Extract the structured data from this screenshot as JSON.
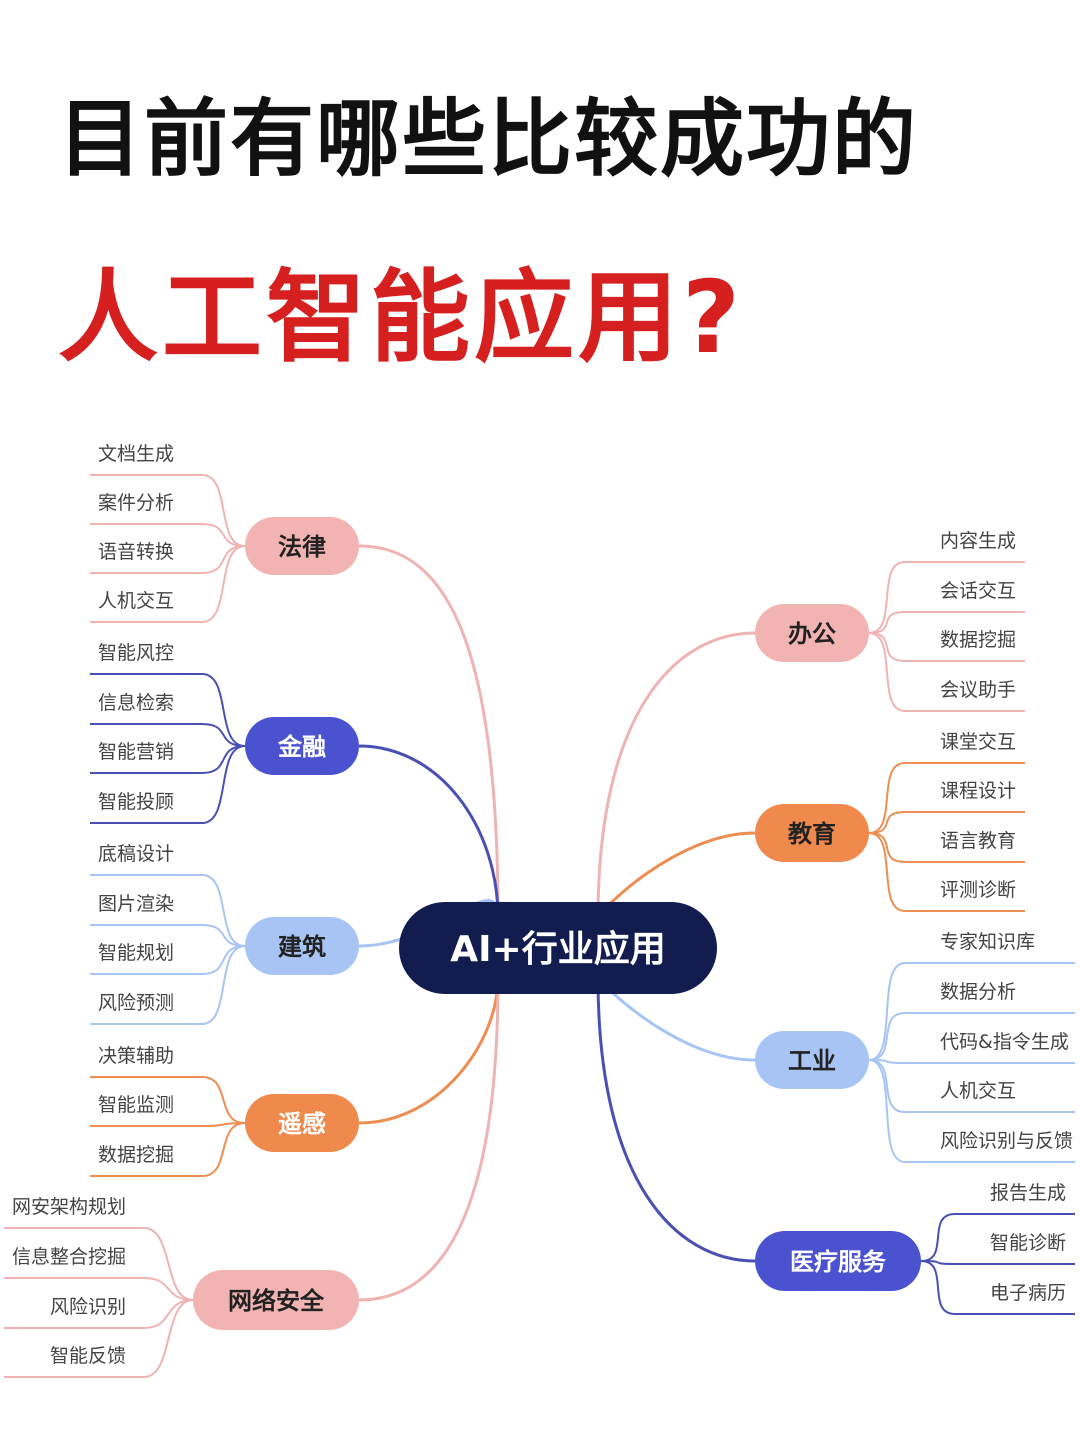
{
  "title": {
    "line1": "目前有哪些比较成功的",
    "line2": "人工智能应用?"
  },
  "center": {
    "label": "AI+行业应用",
    "color": "#131c4e",
    "text_color": "#ffffff"
  },
  "branches": [
    {
      "id": "law",
      "label": "法律",
      "side": "left",
      "fill": "#f2b3b3",
      "line": "#f0b3b3",
      "text_color": "#222222",
      "leaves": [
        "文档生成",
        "案件分析",
        "语音转换",
        "人机交互"
      ]
    },
    {
      "id": "finance",
      "label": "金融",
      "side": "left",
      "fill": "#4b52cf",
      "line": "#4a4fb3",
      "text_color": "#ffffff",
      "leaves": [
        "智能风控",
        "信息检索",
        "智能营销",
        "智能投顾"
      ]
    },
    {
      "id": "architecture",
      "label": "建筑",
      "side": "left",
      "fill": "#a7c4f4",
      "line": "#a7c4f4",
      "text_color": "#222222",
      "leaves": [
        "底稿设计",
        "图片渲染",
        "智能规划",
        "风险预测"
      ]
    },
    {
      "id": "remote-sensing",
      "label": "遥感",
      "side": "left",
      "fill": "#ef8a4c",
      "line": "#ec8d52",
      "text_color": "#ffffff",
      "leaves": [
        "决策辅助",
        "智能监测",
        "数据挖掘"
      ]
    },
    {
      "id": "cybersecurity",
      "label": "网络安全",
      "side": "left",
      "fill": "#f2b3b3",
      "line": "#f0b3b3",
      "text_color": "#222222",
      "leaves": [
        "网安架构规划",
        "信息整合挖掘",
        "风险识别",
        "智能反馈"
      ]
    },
    {
      "id": "office",
      "label": "办公",
      "side": "right",
      "fill": "#f2b3b3",
      "line": "#f0b3b3",
      "text_color": "#222222",
      "leaves": [
        "内容生成",
        "会话交互",
        "数据挖掘",
        "会议助手"
      ]
    },
    {
      "id": "education",
      "label": "教育",
      "side": "right",
      "fill": "#ef8a4c",
      "line": "#ec8d52",
      "text_color": "#222222",
      "leaves": [
        "课堂交互",
        "课程设计",
        "语言教育",
        "评测诊断"
      ]
    },
    {
      "id": "industry",
      "label": "工业",
      "side": "right",
      "fill": "#a7c4f4",
      "line": "#a7c4f4",
      "text_color": "#222222",
      "leaves": [
        "专家知识库",
        "数据分析",
        "代码&指令生成",
        "人机交互",
        "风险识别与反馈"
      ]
    },
    {
      "id": "medical",
      "label": "医疗服务",
      "side": "right",
      "fill": "#4b52cf",
      "line": "#4a4fb3",
      "text_color": "#ffffff",
      "leaves": [
        "报告生成",
        "智能诊断",
        "电子病历"
      ]
    }
  ]
}
